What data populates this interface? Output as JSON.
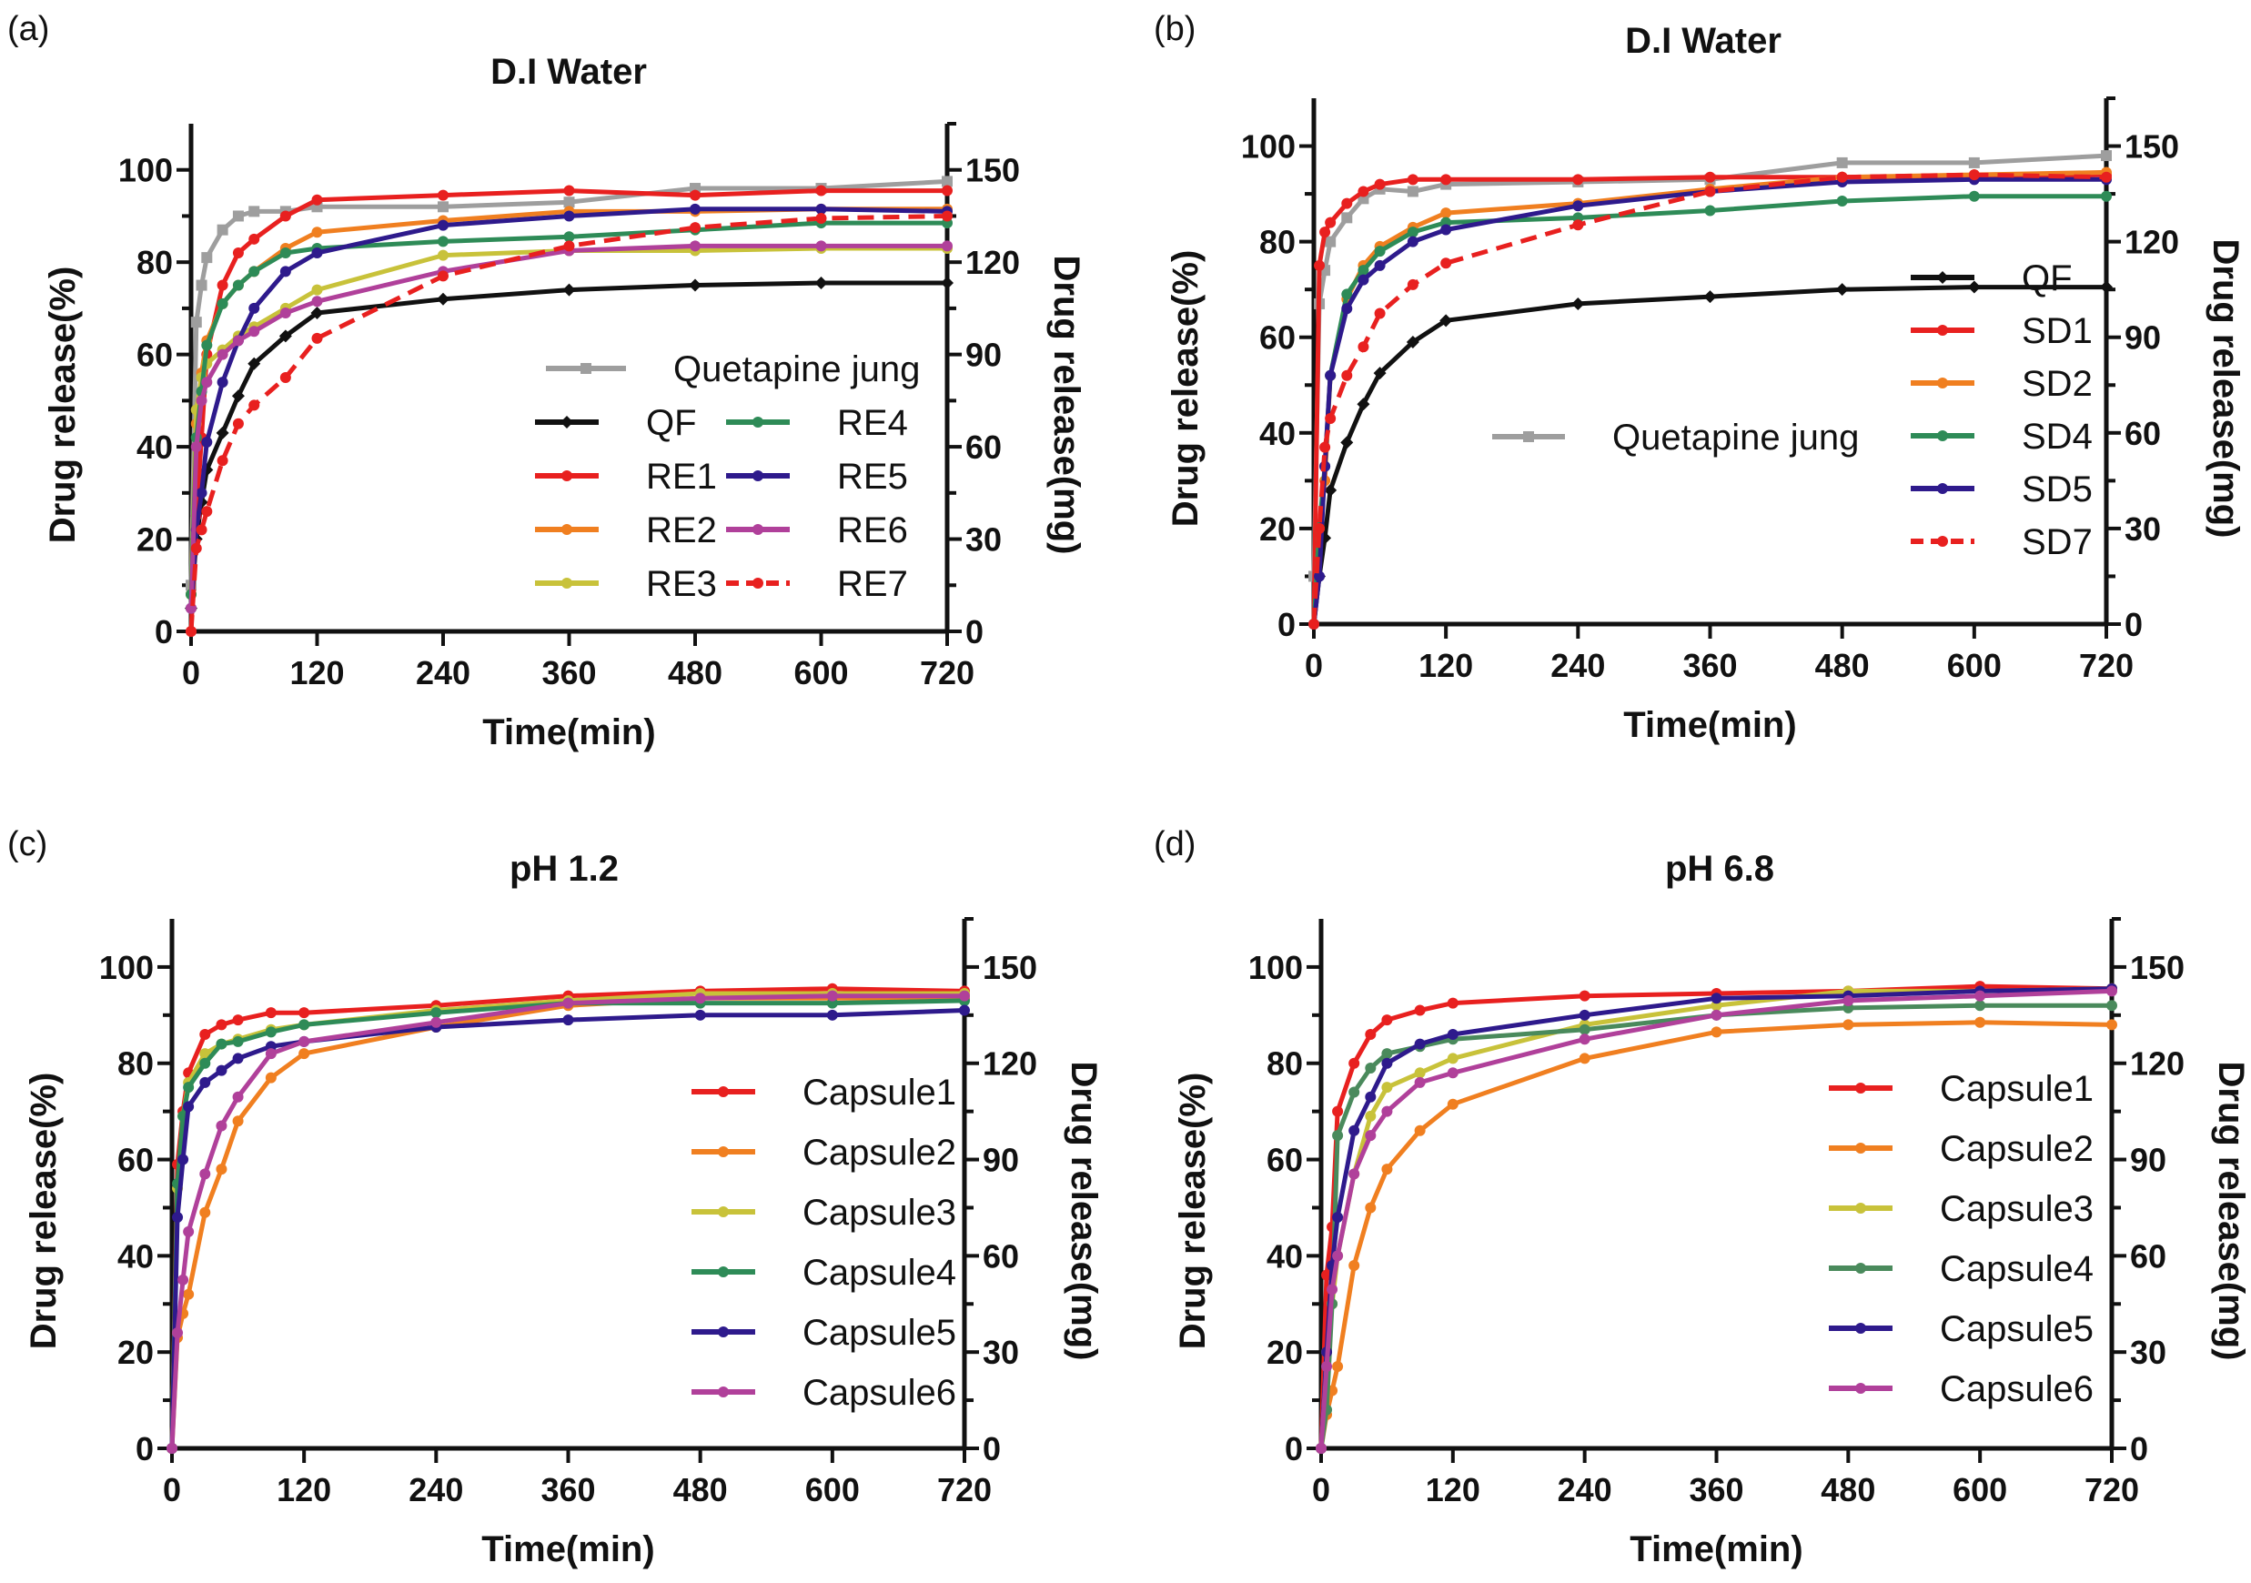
{
  "figure": {
    "panels_count": 4
  },
  "chart_data": [
    {
      "panel_label": "(a)",
      "type": "line",
      "title": "D.I Water",
      "xlabel": "Time(min)",
      "ylabel": "Drug release(%)",
      "ylabel_right": "Drug release(mg)",
      "xlim": [
        0,
        720
      ],
      "ylim": [
        0,
        110
      ],
      "ylim_right": [
        0,
        165
      ],
      "xticks": [
        0,
        120,
        240,
        360,
        480,
        600,
        720
      ],
      "yticks": [
        0,
        20,
        40,
        60,
        80,
        100
      ],
      "yticks_minor": [
        10,
        30,
        50,
        70,
        90
      ],
      "yticks_right": [
        0,
        30,
        60,
        90,
        120,
        150
      ],
      "grid": false,
      "legend_position": "center-right",
      "legend_columns": 2,
      "x": [
        0,
        5,
        10,
        15,
        30,
        45,
        60,
        90,
        120,
        240,
        360,
        480,
        600,
        720
      ],
      "series": [
        {
          "name": "Quetapine jung",
          "color": "#9e9e9e",
          "dashed": false,
          "marker": "square",
          "values": [
            10,
            67,
            75,
            81,
            87,
            90,
            91,
            91,
            92,
            92,
            93,
            96,
            96,
            97.5
          ]
        },
        {
          "name": "QF",
          "color": "#111111",
          "dashed": false,
          "marker": "diamond",
          "values": [
            5,
            20,
            28,
            35,
            43,
            51,
            58,
            64,
            69,
            72,
            74,
            75,
            75.5,
            75.5
          ]
        },
        {
          "name": "RE1",
          "color": "#e8201f",
          "dashed": false,
          "marker": "circle",
          "values": [
            0,
            25,
            42,
            60,
            75,
            82,
            85,
            90,
            93.5,
            94.5,
            95.5,
            94.5,
            95.5,
            95.5
          ]
        },
        {
          "name": "RE2",
          "color": "#f07f20",
          "dashed": false,
          "marker": "circle",
          "values": [
            8,
            45,
            56,
            63,
            71,
            75,
            78,
            83,
            86.5,
            89,
            91,
            91,
            91.5,
            91.5
          ]
        },
        {
          "name": "RE3",
          "color": "#c8c23a",
          "dashed": false,
          "marker": "circle",
          "values": [
            8,
            48,
            55,
            58,
            61,
            64,
            66,
            70,
            74,
            81.5,
            82.5,
            82.5,
            83,
            83
          ]
        },
        {
          "name": "RE4",
          "color": "#2e8b57",
          "dashed": false,
          "marker": "circle",
          "values": [
            8,
            42,
            52,
            62,
            71,
            75,
            78,
            82,
            83,
            84.5,
            85.5,
            87,
            88.5,
            88.5
          ]
        },
        {
          "name": "RE5",
          "color": "#2e1a8c",
          "dashed": false,
          "marker": "circle",
          "values": [
            5,
            22,
            30,
            41,
            54,
            63,
            70,
            78,
            82,
            88,
            90,
            91.5,
            91.5,
            91
          ]
        },
        {
          "name": "RE6",
          "color": "#b0409a",
          "dashed": false,
          "marker": "circle",
          "values": [
            5,
            40,
            50,
            54,
            60,
            63,
            65,
            69,
            71.5,
            78,
            82.5,
            83.5,
            83.5,
            83.5
          ]
        },
        {
          "name": "RE7",
          "color": "#e8201f",
          "dashed": true,
          "marker": "circle",
          "values": [
            0,
            18,
            22,
            26,
            37,
            45,
            49,
            55,
            63.5,
            77,
            83.5,
            87.5,
            89.5,
            90
          ]
        }
      ]
    },
    {
      "panel_label": "(b)",
      "type": "line",
      "title": "D.I Water",
      "xlabel": "Time(min)",
      "ylabel": "Drug release(%)",
      "ylabel_right": "Drug release(mg)",
      "xlim": [
        0,
        720
      ],
      "ylim": [
        0,
        110
      ],
      "ylim_right": [
        0,
        165
      ],
      "xticks": [
        0,
        120,
        240,
        360,
        480,
        600,
        720
      ],
      "yticks": [
        0,
        20,
        40,
        60,
        80,
        100
      ],
      "yticks_minor": [
        10,
        30,
        50,
        70,
        90
      ],
      "yticks_right": [
        0,
        30,
        60,
        90,
        120,
        150
      ],
      "grid": false,
      "legend_position": "right",
      "legend_columns": 1,
      "x": [
        0,
        5,
        10,
        15,
        30,
        45,
        60,
        90,
        120,
        240,
        360,
        480,
        600,
        720
      ],
      "series": [
        {
          "name": "Quetapine jung",
          "color": "#9e9e9e",
          "dashed": false,
          "marker": "square",
          "values": [
            10,
            67,
            74,
            80,
            85,
            89,
            91,
            90.5,
            92,
            92.5,
            93,
            96.5,
            96.5,
            98
          ]
        },
        {
          "name": "QF",
          "color": "#111111",
          "dashed": false,
          "marker": "diamond",
          "values": [
            0,
            10,
            18,
            28,
            38,
            46,
            52.5,
            59,
            63.5,
            67,
            68.5,
            70,
            70.5,
            70.5
          ]
        },
        {
          "name": "SD1",
          "color": "#e8201f",
          "dashed": false,
          "marker": "circle",
          "values": [
            0,
            75,
            82,
            84,
            88,
            90.5,
            92,
            93,
            93,
            93,
            93.5,
            93.5,
            93.5,
            94
          ]
        },
        {
          "name": "SD2",
          "color": "#f07f20",
          "dashed": false,
          "marker": "circle",
          "values": [
            0,
            20,
            30,
            52,
            68,
            75,
            79,
            83,
            86,
            88,
            91,
            93.5,
            94,
            94.5
          ]
        },
        {
          "name": "SD4",
          "color": "#2e8b57",
          "dashed": false,
          "marker": "circle",
          "values": [
            0,
            20,
            33,
            52,
            69,
            74,
            78,
            82,
            84,
            85,
            86.5,
            88.5,
            89.5,
            89.5
          ]
        },
        {
          "name": "SD5",
          "color": "#2e1a8c",
          "dashed": false,
          "marker": "circle",
          "values": [
            0,
            10,
            33,
            52,
            66,
            72,
            75,
            80,
            82.5,
            87.5,
            90.5,
            92.5,
            93,
            93
          ]
        },
        {
          "name": "SD7",
          "color": "#e8201f",
          "dashed": true,
          "marker": "circle",
          "values": [
            0,
            20,
            37,
            43,
            52,
            58,
            65,
            71,
            75.5,
            83.5,
            90.5,
            93.5,
            94,
            93.5
          ]
        }
      ]
    },
    {
      "panel_label": "(c)",
      "type": "line",
      "title": "pH 1.2",
      "xlabel": "Time(min)",
      "ylabel": "Drug release(%)",
      "ylabel_right": "Drug release(mg)",
      "xlim": [
        0,
        720
      ],
      "ylim": [
        0,
        110
      ],
      "ylim_right": [
        0,
        165
      ],
      "xticks": [
        0,
        120,
        240,
        360,
        480,
        600,
        720
      ],
      "yticks": [
        0,
        20,
        40,
        60,
        80,
        100
      ],
      "yticks_minor": [
        10,
        30,
        50,
        70,
        90
      ],
      "yticks_right": [
        0,
        30,
        60,
        90,
        120,
        150
      ],
      "grid": false,
      "legend_position": "right",
      "legend_columns": 1,
      "x": [
        0,
        5,
        10,
        15,
        30,
        45,
        60,
        90,
        120,
        240,
        360,
        480,
        600,
        720
      ],
      "series": [
        {
          "name": "Capsule1",
          "color": "#e8201f",
          "dashed": false,
          "marker": "circle",
          "values": [
            0,
            59,
            70,
            78,
            86,
            88,
            89,
            90.5,
            90.5,
            92,
            94,
            95,
            95.5,
            95
          ]
        },
        {
          "name": "Capsule2",
          "color": "#f07f20",
          "dashed": false,
          "marker": "circle",
          "values": [
            0,
            23,
            28,
            32,
            49,
            58,
            68,
            77,
            82,
            87.5,
            92,
            93.5,
            93.5,
            93.5
          ]
        },
        {
          "name": "Capsule3",
          "color": "#c8c23a",
          "dashed": false,
          "marker": "circle",
          "values": [
            0,
            54,
            69,
            76,
            82,
            84,
            85,
            87,
            88,
            91,
            93,
            94.5,
            94.5,
            94.5
          ]
        },
        {
          "name": "Capsule4",
          "color": "#2e8b57",
          "dashed": false,
          "marker": "circle",
          "values": [
            0,
            55,
            69,
            75,
            80,
            84,
            84.5,
            86.5,
            88,
            90.5,
            92.5,
            92.5,
            92.5,
            93
          ]
        },
        {
          "name": "Capsule5",
          "color": "#2e1a8c",
          "dashed": false,
          "marker": "circle",
          "values": [
            0,
            48,
            60,
            71,
            76,
            78.5,
            81,
            83.5,
            84.5,
            87.5,
            89,
            90,
            90,
            91
          ]
        },
        {
          "name": "Capsule6",
          "color": "#b0409a",
          "dashed": false,
          "marker": "circle",
          "values": [
            0,
            24,
            35,
            45,
            57,
            67,
            73,
            82,
            84.5,
            88.5,
            92.5,
            93.5,
            94,
            94
          ]
        }
      ]
    },
    {
      "panel_label": "(d)",
      "type": "line",
      "title": "pH 6.8",
      "xlabel": "Time(min)",
      "ylabel": "Drug release(%)",
      "ylabel_right": "Drug release(mg)",
      "xlim": [
        0,
        720
      ],
      "ylim": [
        0,
        110
      ],
      "ylim_right": [
        0,
        165
      ],
      "xticks": [
        0,
        120,
        240,
        360,
        480,
        600,
        720
      ],
      "yticks": [
        0,
        20,
        40,
        60,
        80,
        100
      ],
      "yticks_minor": [
        10,
        30,
        50,
        70,
        90
      ],
      "yticks_right": [
        0,
        30,
        60,
        90,
        120,
        150
      ],
      "grid": false,
      "legend_position": "right",
      "legend_columns": 1,
      "x": [
        0,
        5,
        10,
        15,
        30,
        45,
        60,
        90,
        120,
        240,
        360,
        480,
        600,
        720
      ],
      "series": [
        {
          "name": "Capsule1",
          "color": "#e8201f",
          "dashed": false,
          "marker": "circle",
          "values": [
            0,
            36,
            46,
            70,
            80,
            86,
            89,
            91,
            92.5,
            94,
            94.5,
            95,
            96,
            95.5
          ]
        },
        {
          "name": "Capsule2",
          "color": "#f07f20",
          "dashed": false,
          "marker": "circle",
          "values": [
            0,
            7,
            12,
            17,
            38,
            50,
            58,
            66,
            71.5,
            81,
            86.5,
            88,
            88.5,
            88
          ]
        },
        {
          "name": "Capsule3",
          "color": "#c8c23a",
          "dashed": false,
          "marker": "circle",
          "values": [
            0,
            20,
            30,
            40,
            57,
            69,
            75,
            78,
            81,
            88,
            92,
            95,
            95,
            95.5
          ]
        },
        {
          "name": "Capsule4",
          "color": "#4a8a5c",
          "dashed": false,
          "marker": "circle",
          "values": [
            0,
            8,
            30,
            65,
            74,
            79,
            82,
            83.5,
            85,
            87,
            90,
            91.5,
            92,
            92
          ]
        },
        {
          "name": "Capsule5",
          "color": "#2e1a8c",
          "dashed": false,
          "marker": "circle",
          "values": [
            0,
            20,
            38,
            48,
            66,
            73,
            80,
            84,
            86,
            90,
            93.5,
            94,
            95,
            95.5
          ]
        },
        {
          "name": "Capsule6",
          "color": "#b0409a",
          "dashed": false,
          "marker": "circle",
          "values": [
            0,
            17,
            33,
            40,
            57,
            65,
            70,
            76,
            78,
            85,
            90,
            93,
            94,
            95
          ]
        }
      ]
    }
  ]
}
